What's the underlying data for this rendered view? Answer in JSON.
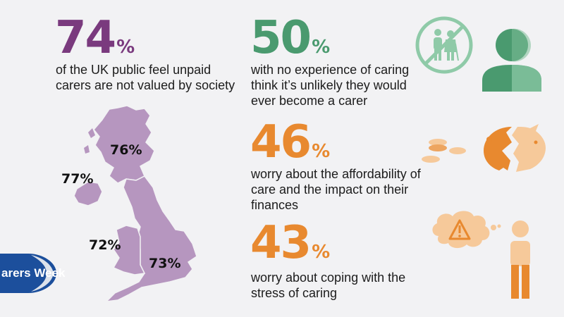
{
  "stats": [
    {
      "number": "74",
      "suffix": "%",
      "text": [
        "of the UK public feel unpaid",
        "carers are not valued by society"
      ],
      "color": "#7a3a7e"
    },
    {
      "number": "50",
      "suffix": "%",
      "text": [
        "with no experience of caring",
        "think it’s unlikely they would",
        "ever become a carer"
      ],
      "color": "#4a9a6f"
    },
    {
      "number": "46",
      "suffix": "%",
      "text": [
        "worry about the affordability of",
        "care and the impact on their",
        "finances"
      ],
      "color": "#e8892f"
    },
    {
      "number": "43",
      "suffix": "%",
      "text": [
        "worry about coping with the",
        "stress of caring"
      ],
      "color": "#e8892f"
    }
  ],
  "map": {
    "regions": [
      {
        "name": "scotland",
        "value": "76%"
      },
      {
        "name": "northern-ireland",
        "value": "77%"
      },
      {
        "name": "wales",
        "value": "72%"
      },
      {
        "name": "england",
        "value": "73%"
      }
    ],
    "fill": "#b696bf"
  },
  "logo": {
    "text": "arers Week",
    "color": "#1c4f9c"
  }
}
